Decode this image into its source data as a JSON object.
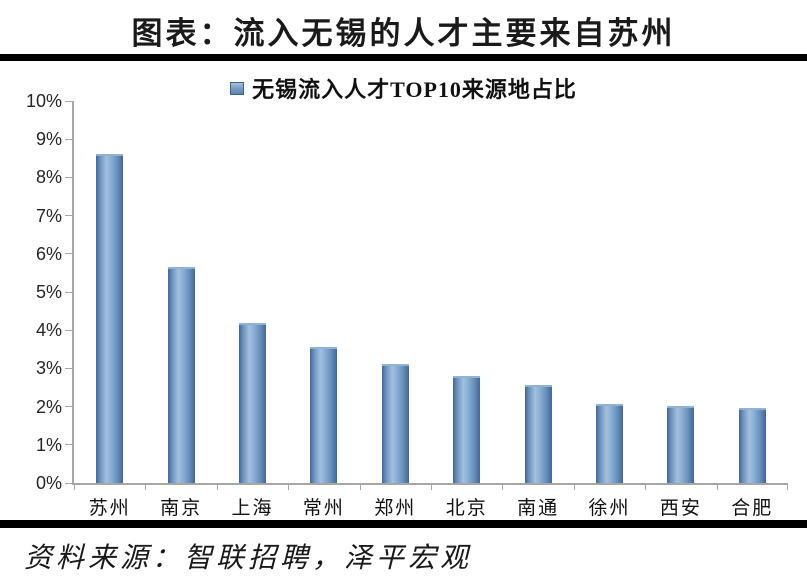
{
  "page": {
    "title": "图表：流入无锡的人才主要来自苏州",
    "source": "资料来源：智联招聘，泽平宏观"
  },
  "chart_data": {
    "type": "bar",
    "title": "无锡流入人才TOP10来源地占比",
    "legend": [
      "无锡流入人才TOP10来源地占比"
    ],
    "legend_position": "top-center",
    "categories": [
      "苏州",
      "南京",
      "上海",
      "常州",
      "郑州",
      "北京",
      "南通",
      "徐州",
      "西安",
      "合肥"
    ],
    "values": [
      8.6,
      5.65,
      4.2,
      3.57,
      3.12,
      2.8,
      2.57,
      2.07,
      2.02,
      1.97
    ],
    "unit": "%",
    "xlabel": "",
    "ylabel": "",
    "ylim": [
      0,
      10
    ],
    "ytick_step": 1,
    "ytick_labels": [
      "0%",
      "1%",
      "2%",
      "3%",
      "4%",
      "5%",
      "6%",
      "7%",
      "8%",
      "9%",
      "10%"
    ],
    "grid": false,
    "colors": {
      "bar_main": "#4f81bd",
      "bar_edge": "#426699",
      "bar_light": "#a2c0de",
      "axis": "#a6a6a6",
      "text": "#1a1a1a",
      "divider": "#000000"
    }
  }
}
